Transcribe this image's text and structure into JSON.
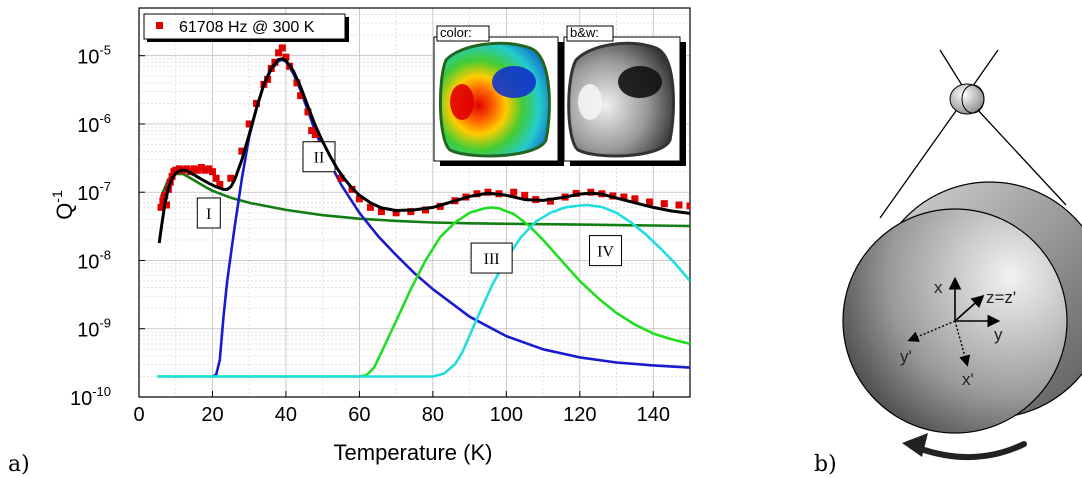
{
  "chart_data": {
    "type": "line",
    "title": "",
    "xlabel": "Temperature (K)",
    "ylabel": "Q",
    "ylabel_sup": "-1",
    "xlim": [
      0,
      150
    ],
    "ylim": [
      1e-10,
      5e-05
    ],
    "yscale": "log",
    "grid": true,
    "legend_position": "top-left",
    "x_ticks": [
      "0",
      "20",
      "40",
      "60",
      "80",
      "100",
      "120",
      "140"
    ],
    "y_ticks": [
      {
        "base": "10",
        "exp": "-10"
      },
      {
        "base": "10",
        "exp": "-9"
      },
      {
        "base": "10",
        "exp": "-8"
      },
      {
        "base": "10",
        "exp": "-7"
      },
      {
        "base": "10",
        "exp": "-6"
      },
      {
        "base": "10",
        "exp": "-5"
      }
    ],
    "measured": {
      "name": "61708 Hz @ 300 K",
      "color": "#e00000",
      "points": [
        [
          6,
          6e-08
        ],
        [
          6.5,
          7.5e-08
        ],
        [
          7,
          9e-08
        ],
        [
          7.5,
          6.5e-08
        ],
        [
          8,
          1.1e-07
        ],
        [
          8.5,
          1.4e-07
        ],
        [
          9,
          1.7e-07
        ],
        [
          9.5,
          2e-07
        ],
        [
          10,
          2.1e-07
        ],
        [
          11,
          2.2e-07
        ],
        [
          12,
          2.1e-07
        ],
        [
          13,
          2.2e-07
        ],
        [
          14,
          2e-07
        ],
        [
          15,
          2.2e-07
        ],
        [
          16,
          2.1e-07
        ],
        [
          17,
          2.3e-07
        ],
        [
          18,
          2.1e-07
        ],
        [
          19,
          2.2e-07
        ],
        [
          20,
          2e-07
        ],
        [
          21,
          1.6e-07
        ],
        [
          22,
          1.3e-07
        ],
        [
          25,
          1.6e-07
        ],
        [
          28,
          4e-07
        ],
        [
          30,
          1e-06
        ],
        [
          32,
          2e-06
        ],
        [
          34,
          3.8e-06
        ],
        [
          35,
          4.5e-06
        ],
        [
          36,
          6.5e-06
        ],
        [
          37,
          8e-06
        ],
        [
          38,
          1.1e-05
        ],
        [
          39,
          1.3e-05
        ],
        [
          40,
          9.5e-06
        ],
        [
          41,
          7e-06
        ],
        [
          43,
          4e-06
        ],
        [
          44,
          2.6e-06
        ],
        [
          46,
          1.5e-06
        ],
        [
          47,
          8e-07
        ],
        [
          48,
          7e-07
        ],
        [
          49,
          5e-07
        ],
        [
          50,
          3.5e-07
        ],
        [
          52,
          2.5e-07
        ],
        [
          55,
          1.6e-07
        ],
        [
          58,
          1.1e-07
        ],
        [
          60,
          8e-08
        ],
        [
          63,
          6e-08
        ],
        [
          66,
          5.2e-08
        ],
        [
          70,
          5e-08
        ],
        [
          74,
          5.2e-08
        ],
        [
          78,
          5.5e-08
        ],
        [
          82,
          6.2e-08
        ],
        [
          86,
          7.5e-08
        ],
        [
          89,
          8.5e-08
        ],
        [
          92,
          9.5e-08
        ],
        [
          95,
          1e-07
        ],
        [
          98,
          9.5e-08
        ],
        [
          102,
          1e-07
        ],
        [
          105,
          9e-08
        ],
        [
          108,
          7.8e-08
        ],
        [
          112,
          7.4e-08
        ],
        [
          116,
          8.5e-08
        ],
        [
          119,
          9.6e-08
        ],
        [
          123,
          1e-07
        ],
        [
          126,
          9.5e-08
        ],
        [
          129,
          8.8e-08
        ],
        [
          132,
          8.5e-08
        ],
        [
          135,
          8e-08
        ],
        [
          139,
          7.2e-08
        ],
        [
          143,
          6.8e-08
        ],
        [
          147,
          6.5e-08
        ],
        [
          150,
          6.3e-08
        ]
      ]
    },
    "fits": [
      {
        "color": "#000000",
        "points": [
          [
            5.5,
            1.8e-08
          ],
          [
            6,
            2.8e-08
          ],
          [
            7,
            6.5e-08
          ],
          [
            8,
            1.15e-07
          ],
          [
            9,
            1.6e-07
          ],
          [
            10,
            1.9e-07
          ],
          [
            11,
            2.05e-07
          ],
          [
            12,
            2.1e-07
          ],
          [
            13,
            2.05e-07
          ],
          [
            15,
            1.8e-07
          ],
          [
            17,
            1.55e-07
          ],
          [
            19,
            1.35e-07
          ],
          [
            21,
            1.2e-07
          ],
          [
            23,
            1.1e-07
          ],
          [
            24,
            1.1e-07
          ],
          [
            25,
            1.2e-07
          ],
          [
            26,
            1.5e-07
          ],
          [
            28,
            3e-07
          ],
          [
            30,
            7e-07
          ],
          [
            32,
            1.7e-06
          ],
          [
            34,
            3.8e-06
          ],
          [
            36,
            6.5e-06
          ],
          [
            38,
            8.8e-06
          ],
          [
            39,
            9e-06
          ],
          [
            40,
            8.5e-06
          ],
          [
            42,
            6e-06
          ],
          [
            44,
            3.5e-06
          ],
          [
            46,
            1.8e-06
          ],
          [
            48,
            9.5e-07
          ],
          [
            50,
            5.5e-07
          ],
          [
            52,
            3.4e-07
          ],
          [
            54,
            2.2e-07
          ],
          [
            56,
            1.55e-07
          ],
          [
            58,
            1.15e-07
          ],
          [
            60,
            9e-08
          ],
          [
            63,
            7e-08
          ],
          [
            66,
            5.9e-08
          ],
          [
            70,
            5.4e-08
          ],
          [
            75,
            5.5e-08
          ],
          [
            80,
            6e-08
          ],
          [
            85,
            7.2e-08
          ],
          [
            90,
            8.7e-08
          ],
          [
            95,
            9.7e-08
          ],
          [
            100,
            9e-08
          ],
          [
            105,
            7.8e-08
          ],
          [
            110,
            7.6e-08
          ],
          [
            115,
            8.3e-08
          ],
          [
            120,
            9.4e-08
          ],
          [
            123,
            9.7e-08
          ],
          [
            126,
            9.4e-08
          ],
          [
            130,
            8.2e-08
          ],
          [
            135,
            7e-08
          ],
          [
            140,
            6e-08
          ],
          [
            145,
            5.3e-08
          ],
          [
            150,
            4.9e-08
          ]
        ]
      },
      {
        "color": "#127d12",
        "points": [
          [
            6,
            8.5e-08
          ],
          [
            8,
            1.55e-07
          ],
          [
            10,
            1.85e-07
          ],
          [
            12,
            1.85e-07
          ],
          [
            15,
            1.5e-07
          ],
          [
            18,
            1.2e-07
          ],
          [
            20,
            1.05e-07
          ],
          [
            25,
            8.3e-08
          ],
          [
            30,
            7e-08
          ],
          [
            40,
            5.5e-08
          ],
          [
            50,
            4.6e-08
          ],
          [
            60,
            4.1e-08
          ],
          [
            70,
            3.8e-08
          ],
          [
            80,
            3.6e-08
          ],
          [
            90,
            3.5e-08
          ],
          [
            100,
            3.45e-08
          ],
          [
            110,
            3.4e-08
          ],
          [
            120,
            3.35e-08
          ],
          [
            130,
            3.3e-08
          ],
          [
            140,
            3.25e-08
          ],
          [
            150,
            3.2e-08
          ]
        ]
      },
      {
        "color": "#1a1acc",
        "points": [
          [
            20,
            2e-10
          ],
          [
            21,
            2.1e-10
          ],
          [
            22,
            3.5e-10
          ],
          [
            23,
            1.5e-09
          ],
          [
            24,
            5e-09
          ],
          [
            26,
            3e-08
          ],
          [
            28,
            1.6e-07
          ],
          [
            30,
            6.5e-07
          ],
          [
            32,
            1.7e-06
          ],
          [
            34,
            3.8e-06
          ],
          [
            36,
            6.2e-06
          ],
          [
            38,
            8.4e-06
          ],
          [
            39,
            8.7e-06
          ],
          [
            40,
            8.2e-06
          ],
          [
            42,
            5.5e-06
          ],
          [
            44,
            3.1e-06
          ],
          [
            46,
            1.55e-06
          ],
          [
            48,
            7.8e-07
          ],
          [
            50,
            4.3e-07
          ],
          [
            55,
            1.3e-07
          ],
          [
            60,
            5e-08
          ],
          [
            65,
            2.3e-08
          ],
          [
            70,
            1.2e-08
          ],
          [
            75,
            6.5e-09
          ],
          [
            80,
            3.8e-09
          ],
          [
            90,
            1.5e-09
          ],
          [
            100,
            7.8e-10
          ],
          [
            110,
            5e-10
          ],
          [
            120,
            3.8e-10
          ],
          [
            130,
            3.2e-10
          ],
          [
            140,
            2.9e-10
          ],
          [
            150,
            2.7e-10
          ]
        ]
      },
      {
        "color": "#22dd22",
        "points": [
          [
            5,
            2e-10
          ],
          [
            60,
            2e-10
          ],
          [
            62,
            2.1e-10
          ],
          [
            64,
            2.7e-10
          ],
          [
            66,
            4.5e-10
          ],
          [
            70,
            1.3e-09
          ],
          [
            74,
            3.8e-09
          ],
          [
            78,
            1e-08
          ],
          [
            82,
            2.2e-08
          ],
          [
            86,
            3.6e-08
          ],
          [
            90,
            5e-08
          ],
          [
            94,
            5.8e-08
          ],
          [
            96,
            6e-08
          ],
          [
            98,
            5.8e-08
          ],
          [
            102,
            4.8e-08
          ],
          [
            106,
            3.3e-08
          ],
          [
            110,
            2e-08
          ],
          [
            115,
            1e-08
          ],
          [
            120,
            5e-09
          ],
          [
            125,
            2.8e-09
          ],
          [
            130,
            1.7e-09
          ],
          [
            135,
            1.15e-09
          ],
          [
            140,
            8.5e-10
          ],
          [
            145,
            7e-10
          ],
          [
            150,
            6e-10
          ]
        ]
      },
      {
        "color": "#22dddd",
        "points": [
          [
            5,
            2e-10
          ],
          [
            80,
            2e-10
          ],
          [
            83,
            2.2e-10
          ],
          [
            86,
            3e-10
          ],
          [
            88,
            4.5e-10
          ],
          [
            92,
            1.4e-09
          ],
          [
            96,
            4.2e-09
          ],
          [
            100,
            1.05e-08
          ],
          [
            104,
            2.2e-08
          ],
          [
            108,
            3.7e-08
          ],
          [
            112,
            5e-08
          ],
          [
            116,
            6e-08
          ],
          [
            120,
            6.4e-08
          ],
          [
            122,
            6.5e-08
          ],
          [
            126,
            6.1e-08
          ],
          [
            130,
            5e-08
          ],
          [
            134,
            3.6e-08
          ],
          [
            138,
            2.4e-08
          ],
          [
            142,
            1.5e-08
          ],
          [
            146,
            9e-09
          ],
          [
            150,
            5e-09
          ]
        ]
      }
    ],
    "annotations": [
      {
        "text": "I",
        "x": 19,
        "y": 4.8e-08
      },
      {
        "text": "II",
        "x": 49,
        "y": 3.2e-07
      },
      {
        "text": "III",
        "x": 96,
        "y": 1.05e-08
      },
      {
        "text": "IV",
        "x": 127,
        "y": 1.35e-08
      }
    ]
  },
  "insets": {
    "color_label": "color:",
    "bw_label": "b&w:"
  },
  "panels": {
    "a_label": "a)",
    "b_label": "b)"
  },
  "diagram": {
    "axes_labels": [
      "x",
      "z=z'",
      "y",
      "y'",
      "x'"
    ]
  }
}
